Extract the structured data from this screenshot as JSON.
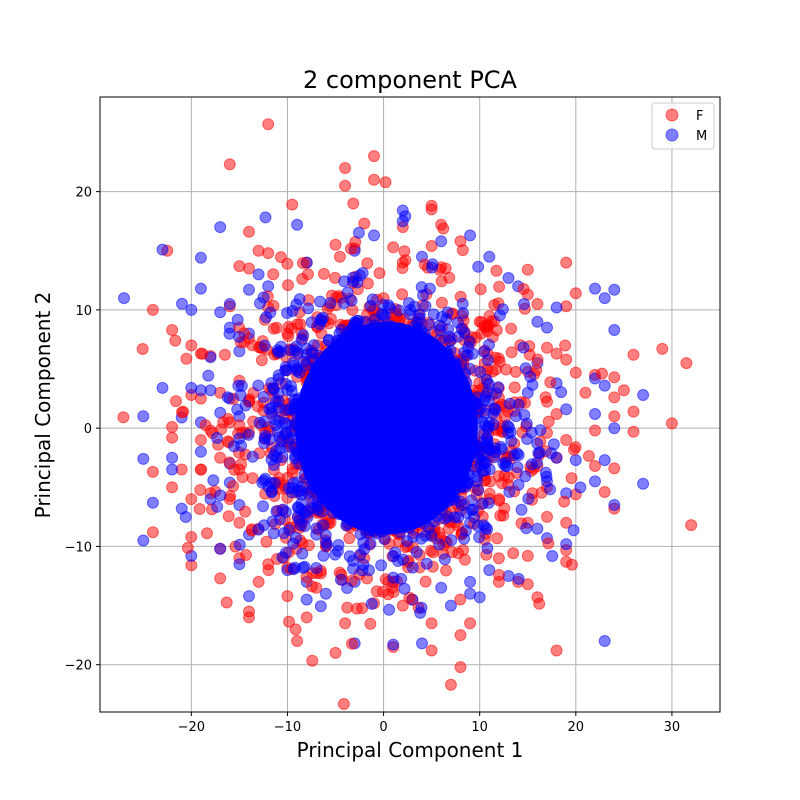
{
  "chart_data": {
    "type": "scatter",
    "title": "2 component PCA",
    "xlabel": "Principal Component 1",
    "ylabel": "Principal Component 2",
    "xlim": [
      -29.5,
      35
    ],
    "ylim": [
      -24,
      28
    ],
    "xticks": [
      -20,
      -10,
      0,
      10,
      20,
      30
    ],
    "yticks": [
      -20,
      -10,
      0,
      10,
      20
    ],
    "grid": true,
    "legend_position": "top-right",
    "series": [
      {
        "name": "F",
        "color": "#ff0000",
        "opacity": 0.5,
        "points": [
          [
            -12,
            25.7
          ],
          [
            -16,
            22.3
          ],
          [
            -4,
            22
          ],
          [
            -1,
            23
          ],
          [
            -4,
            20.5
          ],
          [
            -1,
            21
          ],
          [
            0.2,
            20.8
          ],
          [
            5,
            18.5
          ],
          [
            5,
            18.8
          ],
          [
            -9.5,
            18.9
          ],
          [
            -14,
            16.6
          ],
          [
            -2,
            17.3
          ],
          [
            2,
            17
          ],
          [
            6,
            17.2
          ],
          [
            -22.5,
            15
          ],
          [
            -13,
            15
          ],
          [
            -12,
            14.8
          ],
          [
            -5,
            15.5
          ],
          [
            -3,
            15.2
          ],
          [
            1,
            15.3
          ],
          [
            5,
            15.4
          ],
          [
            8,
            15.8
          ],
          [
            -15,
            13.7
          ],
          [
            -14,
            13.5
          ],
          [
            -10,
            13.9
          ],
          [
            -8,
            14
          ],
          [
            2,
            14
          ],
          [
            6,
            13.6
          ],
          [
            15,
            13.4
          ],
          [
            19,
            14
          ],
          [
            -24,
            10
          ],
          [
            -22,
            8.3
          ],
          [
            -16,
            10.3
          ],
          [
            -12,
            10.2
          ],
          [
            15,
            11.3
          ],
          [
            16,
            10.5
          ],
          [
            19,
            10.3
          ],
          [
            20,
            11.4
          ],
          [
            -20,
            7
          ],
          [
            -19,
            6.3
          ],
          [
            -18,
            6.1
          ],
          [
            -14,
            7.6
          ],
          [
            17,
            6.8
          ],
          [
            18,
            6.3
          ],
          [
            19,
            5.8
          ],
          [
            20,
            4.7
          ],
          [
            22,
            4.5
          ],
          [
            24,
            4.3
          ],
          [
            26,
            6.2
          ],
          [
            29,
            6.7
          ],
          [
            31.5,
            5.5
          ],
          [
            21,
            3
          ],
          [
            24,
            2.6
          ],
          [
            25,
            3.2
          ],
          [
            -20,
            2.8
          ],
          [
            -19,
            2.5
          ],
          [
            -17,
            3
          ],
          [
            -15,
            4
          ],
          [
            -14,
            2.3
          ],
          [
            18,
            1.2
          ],
          [
            24,
            1
          ],
          [
            26,
            1.4
          ],
          [
            30,
            0.4
          ],
          [
            -22,
            0.1
          ],
          [
            -22,
            -0.8
          ],
          [
            -19,
            -1
          ],
          [
            -18,
            -0.2
          ],
          [
            -16,
            0.5
          ],
          [
            17,
            -0.4
          ],
          [
            19,
            -1
          ],
          [
            22,
            -0.2
          ],
          [
            26,
            -0.3
          ],
          [
            -24,
            -3.7
          ],
          [
            -21,
            -3.5
          ],
          [
            -19,
            -3.5
          ],
          [
            -17,
            -2.5
          ],
          [
            -15,
            -3.5
          ],
          [
            16,
            -3.2
          ],
          [
            18,
            -2.5
          ],
          [
            22,
            -3.2
          ],
          [
            24,
            -3.4
          ],
          [
            -22,
            -5
          ],
          [
            -20,
            -6
          ],
          [
            -18,
            -5.5
          ],
          [
            -16,
            -6
          ],
          [
            17,
            -5
          ],
          [
            20,
            -5.6
          ],
          [
            23,
            -5.4
          ],
          [
            24,
            -6.8
          ],
          [
            -24,
            -8.8
          ],
          [
            -20,
            -9.2
          ],
          [
            -17,
            -10.2
          ],
          [
            -15,
            -8
          ],
          [
            -13,
            -8.5
          ],
          [
            15,
            -8
          ],
          [
            17,
            -7.5
          ],
          [
            19,
            -8
          ],
          [
            32,
            -8.2
          ],
          [
            -20,
            -11.6
          ],
          [
            -15,
            -11
          ],
          [
            -12,
            -11.5
          ],
          [
            -10,
            -11.8
          ],
          [
            12,
            -11
          ],
          [
            15,
            -10.8
          ],
          [
            19,
            -10.3
          ],
          [
            19,
            -11.3
          ],
          [
            -17,
            -12.7
          ],
          [
            -13,
            -13
          ],
          [
            -10,
            -14.2
          ],
          [
            -7,
            -13.5
          ],
          [
            12,
            -13
          ],
          [
            14,
            -13
          ],
          [
            15,
            -13.2
          ],
          [
            16,
            -14.3
          ],
          [
            -14,
            -15.5
          ],
          [
            -14,
            -16
          ],
          [
            -8,
            -16
          ],
          [
            -4,
            -16.5
          ],
          [
            -1,
            -14.8
          ],
          [
            2,
            -15
          ],
          [
            3,
            -14.5
          ],
          [
            5,
            -16.5
          ],
          [
            9,
            -16.5
          ],
          [
            -9,
            -18
          ],
          [
            -5,
            -19
          ],
          [
            1,
            -18.5
          ],
          [
            5,
            -18.8
          ],
          [
            8,
            -17.5
          ],
          [
            8,
            -20.2
          ],
          [
            7,
            -21.7
          ],
          [
            18,
            -18.8
          ],
          [
            -6,
            7
          ],
          [
            -3,
            5
          ],
          [
            2,
            6
          ],
          [
            6,
            4
          ],
          [
            9,
            2
          ],
          [
            -8,
            0
          ],
          [
            -4,
            -3
          ],
          [
            0,
            -2
          ],
          [
            4,
            -5
          ],
          [
            8,
            -7
          ],
          [
            -10,
            8
          ],
          [
            10,
            9
          ],
          [
            -11,
            -7
          ],
          [
            11,
            -6
          ],
          [
            -6,
            -10
          ],
          [
            5,
            -9
          ],
          [
            0,
            11
          ],
          [
            -2,
            -11
          ]
        ]
      },
      {
        "name": "M",
        "color": "#0000ff",
        "opacity": 0.5,
        "points": [
          [
            -23,
            15.1
          ],
          [
            -17,
            17
          ],
          [
            -9,
            17.2
          ],
          [
            2,
            18.4
          ],
          [
            2,
            17.5
          ],
          [
            -1,
            16.3
          ],
          [
            6,
            15.8
          ],
          [
            9,
            16.3
          ],
          [
            -19,
            14.4
          ],
          [
            -13,
            13
          ],
          [
            -12,
            12
          ],
          [
            -8,
            14
          ],
          [
            -3,
            15
          ],
          [
            4,
            14.5
          ],
          [
            11,
            14.5
          ],
          [
            13,
            12.7
          ],
          [
            14,
            12
          ],
          [
            -27,
            11
          ],
          [
            -19,
            11.8
          ],
          [
            -16,
            10.5
          ],
          [
            -14,
            11.7
          ],
          [
            18,
            10.2
          ],
          [
            22,
            11.8
          ],
          [
            23,
            11
          ],
          [
            24,
            11.7
          ],
          [
            24,
            8.3
          ],
          [
            -20,
            10
          ],
          [
            -17,
            9.8
          ],
          [
            -16,
            8.5
          ],
          [
            -14,
            8
          ],
          [
            16,
            9
          ],
          [
            17,
            8.5
          ],
          [
            -18,
            6
          ],
          [
            -15,
            6.5
          ],
          [
            16,
            5.5
          ],
          [
            -23,
            3.4
          ],
          [
            -20,
            3.4
          ],
          [
            -19,
            3.2
          ],
          [
            -18,
            3.2
          ],
          [
            -16,
            2.5
          ],
          [
            15,
            3
          ],
          [
            18,
            3.8
          ],
          [
            22,
            4.2
          ],
          [
            23,
            3.6
          ],
          [
            27,
            2.8
          ],
          [
            -25,
            1
          ],
          [
            -21,
            0.9
          ],
          [
            -19,
            0.5
          ],
          [
            -17,
            1.3
          ],
          [
            -15,
            1
          ],
          [
            19,
            1.6
          ],
          [
            22,
            1.2
          ],
          [
            24,
            0
          ],
          [
            -25,
            -2.6
          ],
          [
            -22,
            -2.5
          ],
          [
            -22,
            -3.5
          ],
          [
            -19,
            -2
          ],
          [
            -16,
            -3
          ],
          [
            18,
            -2.5
          ],
          [
            20,
            -2.7
          ],
          [
            23,
            -2.7
          ],
          [
            -24,
            -6.3
          ],
          [
            -21,
            -6.8
          ],
          [
            -18,
            -6
          ],
          [
            -16,
            -4.6
          ],
          [
            -15,
            -6.5
          ],
          [
            17,
            -4.5
          ],
          [
            19,
            -5.5
          ],
          [
            22,
            -4.5
          ],
          [
            24,
            -6.5
          ],
          [
            27,
            -4.7
          ],
          [
            -25,
            -9.5
          ],
          [
            -20,
            -10.8
          ],
          [
            -17,
            -10.2
          ],
          [
            -14,
            -9
          ],
          [
            16,
            -8.5
          ],
          [
            17,
            -9.3
          ],
          [
            19,
            -9.8
          ],
          [
            -15,
            -11.5
          ],
          [
            -10,
            -12
          ],
          [
            -8,
            -13
          ],
          [
            -3,
            -13
          ],
          [
            1,
            -13
          ],
          [
            6,
            -13.5
          ],
          [
            9,
            -13
          ],
          [
            11,
            -12
          ],
          [
            13,
            -12.5
          ],
          [
            -14,
            -14.2
          ],
          [
            -8,
            -14.5
          ],
          [
            -6,
            -14
          ],
          [
            3,
            -14.5
          ],
          [
            7,
            -15
          ],
          [
            9,
            -14
          ],
          [
            10,
            -14.3
          ],
          [
            -3,
            -18.2
          ],
          [
            1,
            -18.3
          ],
          [
            4,
            -18.2
          ],
          [
            23,
            -18
          ],
          [
            -5,
            6
          ],
          [
            0,
            4
          ],
          [
            4,
            8
          ],
          [
            -9,
            1
          ],
          [
            7,
            -1
          ],
          [
            -3,
            -6
          ],
          [
            2,
            -4
          ],
          [
            9,
            -8
          ],
          [
            -7,
            -9
          ],
          [
            0,
            0
          ]
        ]
      }
    ]
  }
}
